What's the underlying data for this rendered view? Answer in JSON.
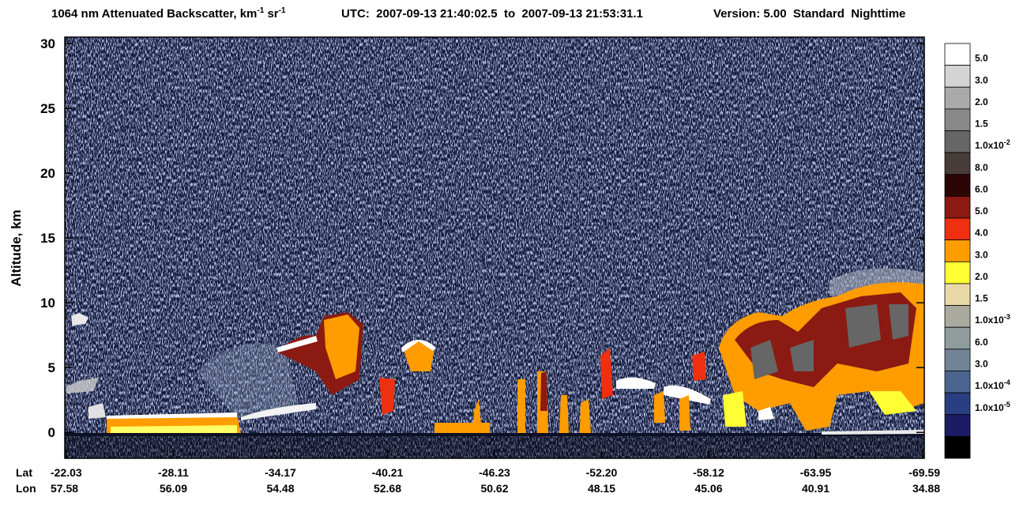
{
  "chart_data": {
    "type": "heatmap",
    "title_parts": [
      "1064 nm Attenuated Backscatter, km",
      "-1",
      " sr",
      "-1"
    ],
    "time_range": "UTC:  2007-09-13 21:40:02.5  to  2007-09-13 21:53:31.1",
    "version": "Version: 5.00  Standard  Nighttime",
    "ylabel": "Altitude, km",
    "ylim": [
      -2,
      30.5
    ],
    "yticks": [
      0,
      5,
      10,
      15,
      20,
      25,
      30
    ],
    "lat_title": "Lat",
    "lon_title": "Lon",
    "lat_labels": [
      "-22.03",
      "-28.11",
      "-34.17",
      "-40.21",
      "-46.23",
      "-52.20",
      "-58.12",
      "-63.95",
      "-69.59"
    ],
    "lon_labels": [
      "57.58",
      "56.09",
      "54.48",
      "52.68",
      "50.62",
      "48.15",
      "45.06",
      "40.91",
      "34.88"
    ],
    "colorbar": {
      "colors": [
        "#ffffff",
        "#d4d4d4",
        "#aaaaaa",
        "#888888",
        "#666666",
        "#473c38",
        "#2d0505",
        "#8a1a12",
        "#ee3010",
        "#ff9c00",
        "#ffff33",
        "#ead9a8",
        "#aaaa9e",
        "#8f9c9e",
        "#718497",
        "#4c6590",
        "#2a3f82",
        "#1c1c66",
        "#000000"
      ],
      "labels": [
        "5.0",
        "3.0",
        "2.0",
        "1.5",
        {
          "label": "1.0x10",
          "sup": "-2"
        },
        "8.0",
        "6.0",
        "5.0",
        "4.0",
        "3.0",
        "2.0",
        "1.5",
        {
          "label": "1.0x10",
          "sup": "-3"
        },
        "6.0",
        "3.0",
        {
          "label": "1.0x10",
          "sup": "-4"
        },
        {
          "label": "1.0x10",
          "sup": "-5"
        }
      ]
    }
  }
}
